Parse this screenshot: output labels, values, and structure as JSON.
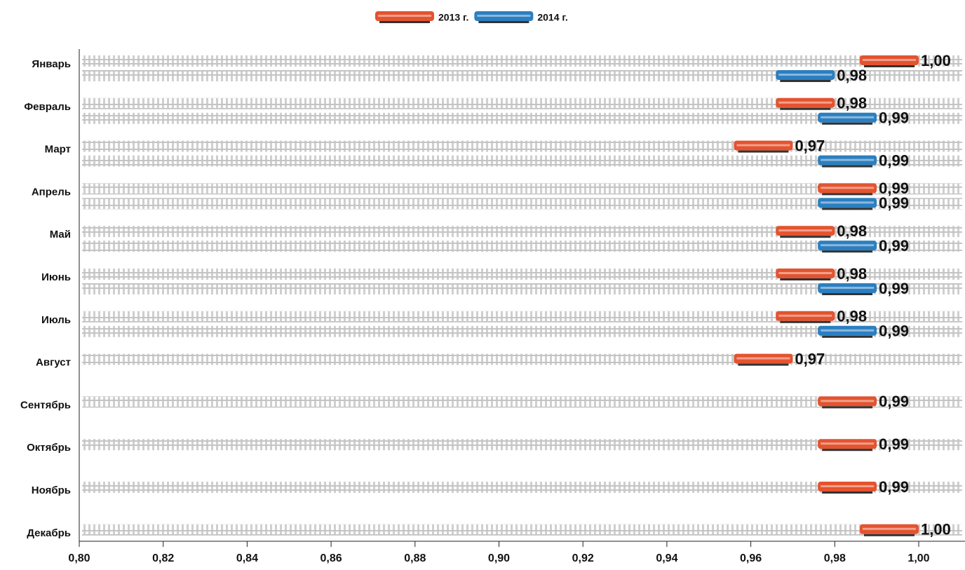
{
  "chart_data": {
    "type": "hbar",
    "categories": [
      "Январь",
      "Февраль",
      "Март",
      "Апрель",
      "Май",
      "Июнь",
      "Июль",
      "Август",
      "Сентябрь",
      "Октябрь",
      "Ноябрь",
      "Декабрь"
    ],
    "series": [
      {
        "name": "2013 г.",
        "color": "#e4532f",
        "values": [
          1.0,
          0.98,
          0.97,
          0.99,
          0.98,
          0.98,
          0.98,
          0.97,
          0.99,
          0.99,
          0.99,
          1.0
        ],
        "value_labels": [
          "1,00",
          "0,98",
          "0,97",
          "0,99",
          "0,98",
          "0,98",
          "0,98",
          "0,97",
          "0,99",
          "0,99",
          "0,99",
          "1,00"
        ]
      },
      {
        "name": "2014 г.",
        "color": "#2b7fc0",
        "values": [
          0.98,
          0.99,
          0.99,
          0.99,
          0.99,
          0.99,
          0.99,
          null,
          null,
          null,
          null,
          null
        ],
        "value_labels": [
          "0,98",
          "0,99",
          "0,99",
          "0,99",
          "0,99",
          "0,99",
          "0,99",
          null,
          null,
          null,
          null,
          null
        ]
      }
    ],
    "xlim": [
      0.8,
      1.0
    ],
    "xticks": [
      {
        "value": 0.8,
        "label": "0,80"
      },
      {
        "value": 0.82,
        "label": "0,82"
      },
      {
        "value": 0.84,
        "label": "0,84"
      },
      {
        "value": 0.86,
        "label": "0,86"
      },
      {
        "value": 0.88,
        "label": "0,88"
      },
      {
        "value": 0.9,
        "label": "0,90"
      },
      {
        "value": 0.92,
        "label": "0,92"
      },
      {
        "value": 0.94,
        "label": "0,94"
      },
      {
        "value": 0.96,
        "label": "0,96"
      },
      {
        "value": 0.98,
        "label": "0,98"
      },
      {
        "value": 1.0,
        "label": "1,00"
      }
    ],
    "legend": "top"
  }
}
